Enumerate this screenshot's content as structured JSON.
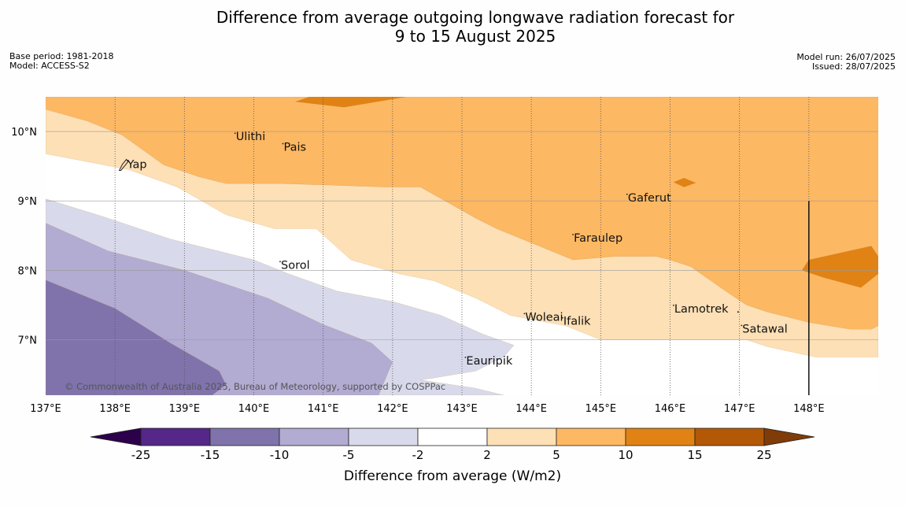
{
  "title_line1": "Difference from average outgoing longwave radiation forecast for",
  "title_line2": "9 to 15 August 2025",
  "base_period": "Base period: 1981-2018",
  "model": "Model: ACCESS-S2",
  "model_run": "Model run: 26/07/2025",
  "issued": "Issued: 28/07/2025",
  "copyright": "© Commonwealth of Australia 2025, Bureau of Meteorology, supported by COSPPac",
  "colors": {
    "bins": [
      "#542788",
      "#8073ac",
      "#b2abd2",
      "#d8daeb",
      "#ffffff",
      "#fee0b6",
      "#fdb863",
      "#e08214",
      "#b35806"
    ],
    "under": "#2d004b",
    "over": "#7f3b08"
  },
  "places": [
    {
      "name": "Ulithi",
      "lon": 139.73,
      "lat": 9.93
    },
    {
      "name": "Pais",
      "lon": 140.42,
      "lat": 9.78
    },
    {
      "name": "Yap",
      "lon": 138.13,
      "lat": 9.53
    },
    {
      "name": "Gaferut",
      "lon": 145.38,
      "lat": 9.05
    },
    {
      "name": "Faraulep",
      "lon": 144.6,
      "lat": 8.47
    },
    {
      "name": "Sorol",
      "lon": 140.38,
      "lat": 8.08
    },
    {
      "name": "Lamotrek",
      "lon": 146.05,
      "lat": 7.45
    },
    {
      "name": "Woleai",
      "lon": 143.9,
      "lat": 7.33
    },
    {
      "name": "Ifalik",
      "lon": 144.45,
      "lat": 7.27
    },
    {
      "name": "Satawal",
      "lon": 147.03,
      "lat": 7.16
    },
    {
      "name": "Eauripik",
      "lon": 143.05,
      "lat": 6.7
    }
  ],
  "chart_data": {
    "type": "heatmap",
    "variable": "Difference from average (W/m2)",
    "x_ticks": [
      "137°E",
      "138°E",
      "139°E",
      "140°E",
      "141°E",
      "142°E",
      "143°E",
      "144°E",
      "145°E",
      "146°E",
      "147°E",
      "148°E"
    ],
    "y_ticks": [
      "10°N",
      "9°N",
      "8°N",
      "7°N"
    ],
    "x_range": [
      137,
      149
    ],
    "y_range": [
      6.2,
      10.5
    ],
    "colorbar": {
      "label": "Difference from average (W/m2)",
      "levels": [
        -25,
        -15,
        -10,
        -5,
        -2,
        2,
        5,
        10,
        15,
        25
      ],
      "tick_labels": [
        "-25",
        "-15",
        "-10",
        "-5",
        "-2",
        "2",
        "5",
        "10",
        "15",
        "25"
      ],
      "extend": "both"
    },
    "regions": [
      {
        "level_range": [
          5,
          10
        ],
        "description_polygon": [
          [
            137,
            10.5
          ],
          [
            149,
            10.5
          ],
          [
            149,
            7.2
          ],
          [
            148.9,
            7.15
          ],
          [
            148.6,
            7.15
          ],
          [
            148,
            7.25
          ],
          [
            147.4,
            7.4
          ],
          [
            147.1,
            7.5
          ],
          [
            146.8,
            7.7
          ],
          [
            146.3,
            8.05
          ],
          [
            146,
            8.15
          ],
          [
            145.8,
            8.2
          ],
          [
            145.2,
            8.2
          ],
          [
            144.6,
            8.15
          ],
          [
            143.5,
            8.6
          ],
          [
            143.2,
            8.75
          ],
          [
            142.4,
            9.2
          ],
          [
            141.9,
            9.2
          ],
          [
            141,
            9.23
          ],
          [
            140.4,
            9.25
          ],
          [
            139.6,
            9.25
          ],
          [
            139.2,
            9.35
          ],
          [
            138.7,
            9.52
          ],
          [
            138.1,
            9.95
          ],
          [
            137.6,
            10.15
          ],
          [
            137,
            10.32
          ]
        ]
      },
      {
        "level_range": [
          2,
          5
        ],
        "description_polygon": [
          [
            137,
            10.32
          ],
          [
            137.6,
            10.15
          ],
          [
            138.1,
            9.95
          ],
          [
            138.7,
            9.52
          ],
          [
            139.2,
            9.35
          ],
          [
            139.6,
            9.25
          ],
          [
            140.4,
            9.25
          ],
          [
            141,
            9.23
          ],
          [
            141.9,
            9.2
          ],
          [
            142.4,
            9.2
          ],
          [
            143.2,
            8.75
          ],
          [
            143.5,
            8.6
          ],
          [
            144.6,
            8.15
          ],
          [
            145.2,
            8.2
          ],
          [
            145.8,
            8.2
          ],
          [
            146,
            8.15
          ],
          [
            146.3,
            8.05
          ],
          [
            146.8,
            7.7
          ],
          [
            147.1,
            7.5
          ],
          [
            147.4,
            7.4
          ],
          [
            148,
            7.25
          ],
          [
            148.6,
            7.15
          ],
          [
            148.9,
            7.15
          ],
          [
            149,
            7.2
          ],
          [
            149,
            6.75
          ],
          [
            148.7,
            6.75
          ],
          [
            148.1,
            6.75
          ],
          [
            147.4,
            6.9
          ],
          [
            147.1,
            7
          ],
          [
            145,
            7
          ],
          [
            144.5,
            7.2
          ],
          [
            143.7,
            7.35
          ],
          [
            143.2,
            7.6
          ],
          [
            142.6,
            7.85
          ],
          [
            142.1,
            7.95
          ],
          [
            141.4,
            8.15
          ],
          [
            140.9,
            8.6
          ],
          [
            140.3,
            8.6
          ],
          [
            139.6,
            8.8
          ],
          [
            138.9,
            9.2
          ],
          [
            138.2,
            9.45
          ],
          [
            137,
            9.68
          ]
        ]
      },
      {
        "level_range": [
          -5,
          -2
        ],
        "description_polygon": [
          [
            137,
            9.03
          ],
          [
            137.9,
            8.75
          ],
          [
            138.8,
            8.45
          ],
          [
            140,
            8.15
          ],
          [
            140.5,
            7.95
          ],
          [
            141.2,
            7.7
          ],
          [
            142,
            7.55
          ],
          [
            142.7,
            7.35
          ],
          [
            143.3,
            7.08
          ],
          [
            143.75,
            6.92
          ],
          [
            143.6,
            6.75
          ],
          [
            143.2,
            6.55
          ],
          [
            142.6,
            6.45
          ],
          [
            142.4,
            6.42
          ],
          [
            143.2,
            6.3
          ],
          [
            143.6,
            6.2
          ],
          [
            137,
            6.2
          ]
        ]
      },
      {
        "level_range": [
          -10,
          -5
        ],
        "description_polygon": [
          [
            137,
            8.68
          ],
          [
            137.9,
            8.28
          ],
          [
            139,
            8
          ],
          [
            140.2,
            7.6
          ],
          [
            141,
            7.22
          ],
          [
            141.7,
            6.95
          ],
          [
            142,
            6.68
          ],
          [
            141.8,
            6.2
          ],
          [
            137,
            6.2
          ]
        ]
      },
      {
        "level_range": [
          -15,
          -10
        ],
        "description_polygon": [
          [
            137,
            7.86
          ],
          [
            138,
            7.45
          ],
          [
            138.8,
            6.95
          ],
          [
            139.5,
            6.55
          ],
          [
            139.6,
            6.35
          ],
          [
            139.4,
            6.2
          ],
          [
            137,
            6.2
          ]
        ]
      },
      {
        "level_range": [
          10,
          15
        ],
        "description_polygon": [
          [
            140.8,
            10.5
          ],
          [
            142.2,
            10.5
          ],
          [
            141.3,
            10.35
          ],
          [
            140.6,
            10.43
          ]
        ]
      },
      {
        "level_range": [
          10,
          15
        ],
        "description_polygon": [
          [
            146.05,
            9.27
          ],
          [
            146.2,
            9.33
          ],
          [
            146.37,
            9.26
          ],
          [
            146.2,
            9.2
          ]
        ]
      },
      {
        "level_range": [
          10,
          15
        ],
        "description_polygon": [
          [
            148,
            8.15
          ],
          [
            148.9,
            8.35
          ],
          [
            149,
            8.2
          ],
          [
            149,
            7.95
          ],
          [
            148.75,
            7.75
          ],
          [
            148.2,
            7.9
          ],
          [
            147.9,
            8
          ]
        ]
      }
    ]
  }
}
